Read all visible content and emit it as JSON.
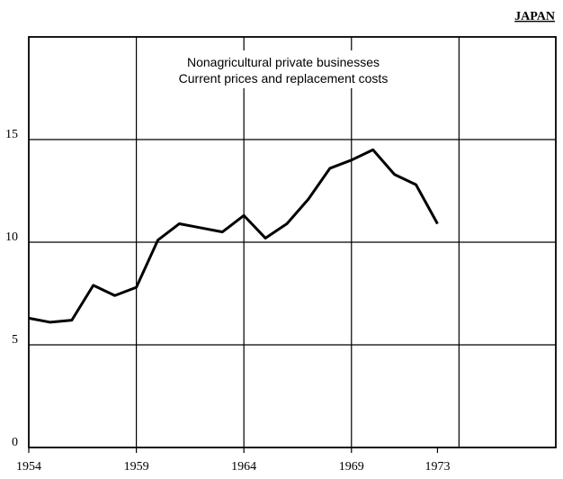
{
  "chart_data": {
    "type": "line",
    "title": "JAPAN",
    "annotation": [
      "Nonagricultural private businesses",
      "Current prices and replacement costs"
    ],
    "x": [
      1954,
      1955,
      1956,
      1957,
      1958,
      1959,
      1960,
      1961,
      1962,
      1963,
      1964,
      1965,
      1966,
      1967,
      1968,
      1969,
      1970,
      1971,
      1972,
      1973
    ],
    "series": [
      {
        "color": "#000000",
        "values": [
          6.3,
          6.1,
          6.2,
          7.9,
          7.4,
          7.8,
          10.1,
          10.9,
          10.7,
          10.5,
          11.3,
          10.2,
          10.9,
          12.1,
          13.6,
          14.0,
          14.5,
          13.3,
          12.8,
          10.9
        ]
      }
    ],
    "xlim": [
      1954,
      1978.5
    ],
    "xticks": [
      1954,
      1959,
      1964,
      1969,
      1973
    ],
    "xgrid": [
      1959,
      1964,
      1969,
      1974
    ],
    "ylim": [
      0,
      20
    ],
    "yticks": [
      0,
      5,
      10,
      15
    ],
    "grid": true
  }
}
